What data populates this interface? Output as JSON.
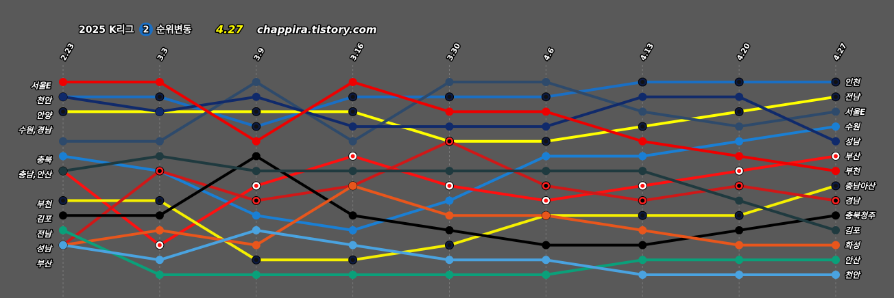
{
  "chart_data": {
    "type": "bump",
    "title": "2025 K리그",
    "title_badge": "2",
    "title_suffix": "순위변동",
    "date": "4.27",
    "site": "chappira.tistory.com",
    "categories": [
      "2.23",
      "3.3",
      "3.9",
      "3.16",
      "3.30",
      "4.6",
      "4.13",
      "4.20",
      "4.27"
    ],
    "ylim": [
      14,
      1
    ],
    "left_labels": [
      {
        "value": 1,
        "label": "서울E"
      },
      {
        "value": 2,
        "label": "천안"
      },
      {
        "value": 3,
        "label": "안양"
      },
      {
        "value": 4,
        "label": "수원,경남"
      },
      {
        "value": 6,
        "label": "충북"
      },
      {
        "value": 7,
        "label": "충남,안산"
      },
      {
        "value": 9,
        "label": "부천"
      },
      {
        "value": 10,
        "label": "김포"
      },
      {
        "value": 11,
        "label": "전남"
      },
      {
        "value": 12,
        "label": "성남"
      },
      {
        "value": 13,
        "label": "부산"
      }
    ],
    "series": [
      {
        "name": "인천",
        "color": "#1a6fc4",
        "marker": {
          "ring": "#0d1a40",
          "core": "#111"
        },
        "values": [
          2,
          2,
          4,
          2,
          2,
          2,
          1,
          1,
          1
        ]
      },
      {
        "name": "전남",
        "color": "#ffff00",
        "marker": {
          "ring": "#0d1a40",
          "core": "#111"
        },
        "values": [
          3,
          3,
          3,
          3,
          5,
          5,
          4,
          3,
          2
        ]
      },
      {
        "name": "서울E",
        "color": "#2e4a6b",
        "values": [
          5,
          5,
          1,
          5,
          1,
          1,
          3,
          4,
          3
        ]
      },
      {
        "name": "수원",
        "color": "#1a7fd4",
        "values": [
          6,
          7,
          10,
          11,
          9,
          6,
          6,
          5,
          4
        ]
      },
      {
        "name": "성남",
        "color": "#102a6b",
        "values": [
          2,
          3,
          2,
          4,
          4,
          4,
          2,
          2,
          5
        ]
      },
      {
        "name": "부산",
        "color": "#ff1010",
        "marker": {
          "ring": "#ffffff",
          "core": "#ff1010"
        },
        "values": [
          7,
          12,
          8,
          6,
          8,
          9,
          8,
          7,
          6
        ]
      },
      {
        "name": "부천",
        "color": "#ee0000",
        "values": [
          1,
          1,
          5,
          1,
          3,
          3,
          5,
          6,
          7
        ]
      },
      {
        "name": "충남아산",
        "color": "#f5f000",
        "marker": {
          "ring": "#0d1a40",
          "core": "#111"
        },
        "values": [
          9,
          9,
          13,
          13,
          12,
          10,
          10,
          10,
          8
        ]
      },
      {
        "name": "경남",
        "color": "#d01818",
        "marker": {
          "ring": "#ff2020",
          "core": "#000"
        },
        "values": [
          12,
          7,
          9,
          8,
          5,
          8,
          9,
          8,
          9
        ]
      },
      {
        "name": "충북청주",
        "color": "#000000",
        "values": [
          10,
          10,
          6,
          10,
          11,
          12,
          12,
          11,
          10
        ]
      },
      {
        "name": "김포",
        "color": "#1f3a3f",
        "values": [
          7,
          6,
          7,
          7,
          7,
          7,
          7,
          9,
          11
        ]
      },
      {
        "name": "화성",
        "color": "#e8561c",
        "values": [
          12,
          11,
          12,
          8,
          10,
          10,
          11,
          12,
          12
        ]
      },
      {
        "name": "안산",
        "color": "#0aa07a",
        "values": [
          11,
          14,
          14,
          14,
          14,
          14,
          13,
          13,
          13
        ]
      },
      {
        "name": "천안",
        "color": "#4aa3e0",
        "values": [
          12,
          13,
          11,
          12,
          13,
          13,
          14,
          14,
          14
        ]
      }
    ]
  }
}
